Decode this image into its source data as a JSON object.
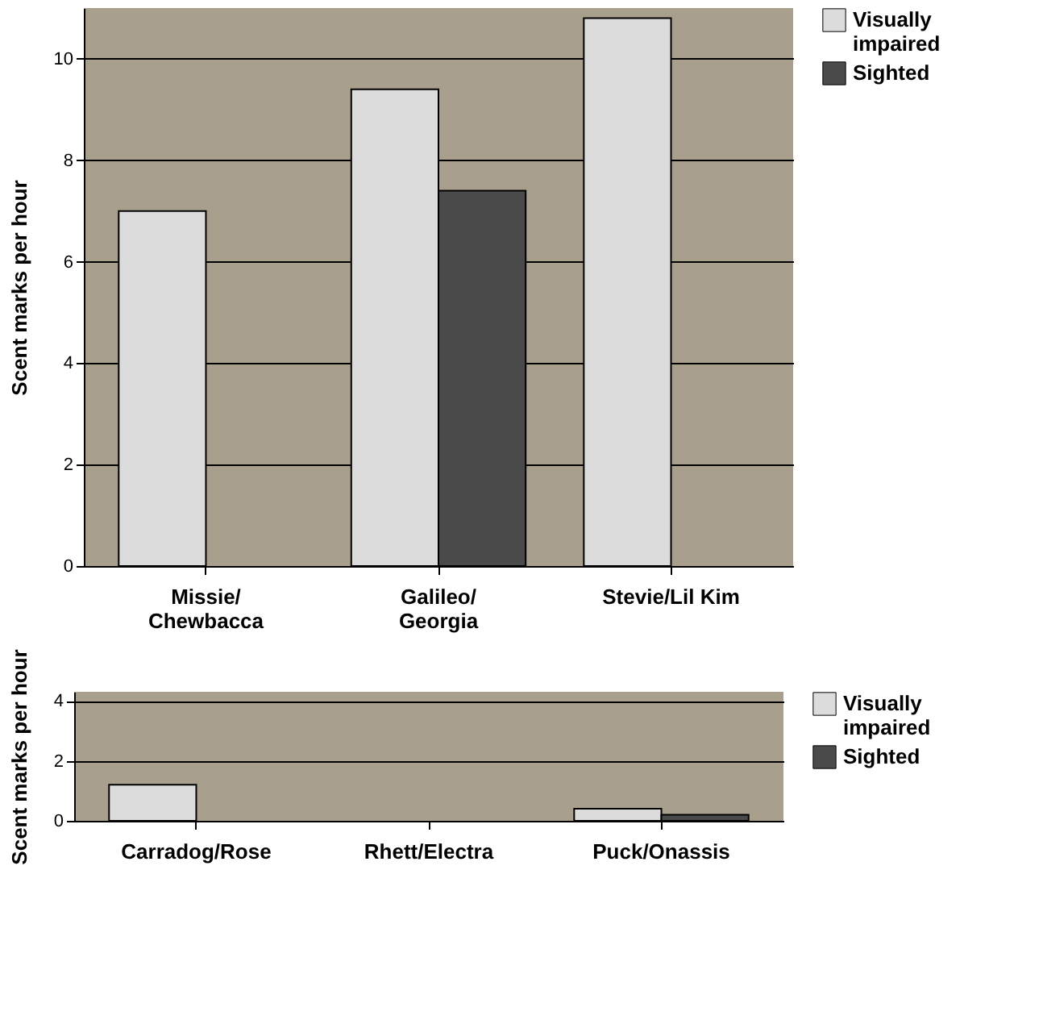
{
  "chart_data": [
    {
      "type": "bar",
      "ylabel": "Scent marks per hour",
      "categories": [
        "Missie/\nChewbacca",
        "Galileo/\nGeorgia",
        "Stevie/Lil Kim"
      ],
      "series": [
        {
          "name": "Visually impaired",
          "color": "#dcdcdc",
          "values": [
            7.0,
            9.4,
            10.8
          ]
        },
        {
          "name": "Sighted",
          "color": "#4a4a4a",
          "values": [
            null,
            7.4,
            null
          ]
        }
      ],
      "ylim": [
        0,
        11
      ],
      "yticks": [
        0,
        2,
        4,
        6,
        8,
        10
      ],
      "grid": "y",
      "legend": "right"
    },
    {
      "type": "bar",
      "ylabel": "Scent marks per hour",
      "categories": [
        "Carradog/Rose",
        "Rhett/Electra",
        "Puck/Onassis"
      ],
      "series": [
        {
          "name": "Visually impaired",
          "color": "#dcdcdc",
          "values": [
            1.2,
            null,
            0.4
          ]
        },
        {
          "name": "Sighted",
          "color": "#4a4a4a",
          "values": [
            null,
            null,
            0.2
          ]
        }
      ],
      "ylim": [
        0,
        4.3
      ],
      "yticks": [
        0,
        2,
        4
      ],
      "grid": "y",
      "legend": "right"
    }
  ]
}
